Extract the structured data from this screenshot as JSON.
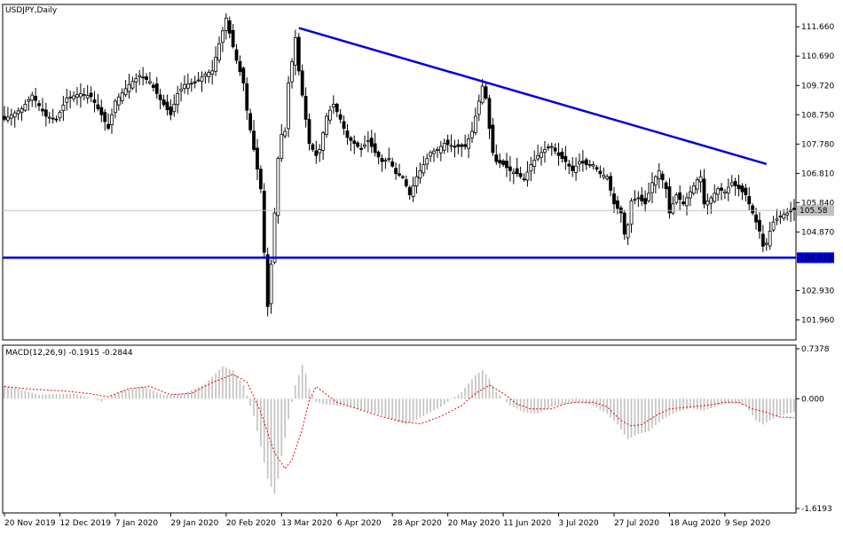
{
  "chart_data": [
    {
      "type": "candlestick",
      "symbol_label": "USDJPY,Daily",
      "ylim": [
        101.3,
        112.4
      ],
      "y_ticks": [
        "111.660",
        "110.690",
        "109.720",
        "108.750",
        "107.780",
        "106.810",
        "105.840",
        "104.870",
        "102.930",
        "101.960"
      ],
      "current_price": 105.58,
      "current_price_label": "105.58",
      "support_level": 104.019,
      "support_label": "104.019",
      "trendline": {
        "start": [
          "13 Mar 2020",
          111.62
        ],
        "end": [
          "17 Sep 2020",
          107.12
        ]
      },
      "x_ticks": [
        "20 Nov 2019",
        "12 Dec 2019",
        "7 Jan 2020",
        "29 Jan 2020",
        "20 Feb 2020",
        "13 Mar 2020",
        "6 Apr 2020",
        "28 Apr 2020",
        "20 May 2020",
        "11 Jun 2020",
        "3 Jul 2020",
        "27 Jul 2020",
        "18 Aug 2020",
        "9 Sep 2020"
      ],
      "close_anchors": [
        [
          0,
          108.6
        ],
        [
          5,
          108.95
        ],
        [
          8,
          109.4
        ],
        [
          12,
          108.7
        ],
        [
          15,
          108.6
        ],
        [
          18,
          109.3
        ],
        [
          22,
          109.45
        ],
        [
          25,
          109.35
        ],
        [
          28,
          108.75
        ],
        [
          30,
          108.3
        ],
        [
          32,
          109.2
        ],
        [
          36,
          109.75
        ],
        [
          39,
          110.05
        ],
        [
          42,
          109.85
        ],
        [
          45,
          109.25
        ],
        [
          48,
          108.75
        ],
        [
          50,
          109.45
        ],
        [
          52,
          109.75
        ],
        [
          55,
          109.8
        ],
        [
          58,
          110.1
        ],
        [
          60,
          110.2
        ],
        [
          62,
          111.1
        ],
        [
          64,
          111.95
        ],
        [
          65,
          111.45
        ],
        [
          67,
          110.55
        ],
        [
          69,
          109.8
        ],
        [
          70,
          108.9
        ],
        [
          72,
          107.6
        ],
        [
          74,
          106.3
        ],
        [
          75,
          104.2
        ],
        [
          76,
          102.4
        ],
        [
          77,
          103.8
        ],
        [
          78,
          105.5
        ],
        [
          79,
          107.3
        ],
        [
          80,
          108.1
        ],
        [
          81,
          108.2
        ],
        [
          82,
          109.8
        ],
        [
          83,
          110.5
        ],
        [
          84,
          111.3
        ],
        [
          85,
          110.2
        ],
        [
          87,
          108.6
        ],
        [
          88,
          107.8
        ],
        [
          90,
          107.4
        ],
        [
          91,
          107.6
        ],
        [
          93,
          108.7
        ],
        [
          95,
          109.1
        ],
        [
          97,
          108.6
        ],
        [
          99,
          108.0
        ],
        [
          101,
          107.8
        ],
        [
          103,
          107.6
        ],
        [
          105,
          107.9
        ],
        [
          107,
          107.5
        ],
        [
          109,
          107.2
        ],
        [
          111,
          107.3
        ],
        [
          113,
          106.8
        ],
        [
          115,
          106.7
        ],
        [
          117,
          106.1
        ],
        [
          119,
          106.7
        ],
        [
          121,
          107.1
        ],
        [
          123,
          107.5
        ],
        [
          125,
          107.6
        ],
        [
          127,
          107.8
        ],
        [
          130,
          107.7
        ],
        [
          133,
          107.7
        ],
        [
          135,
          108.2
        ],
        [
          137,
          109.2
        ],
        [
          138,
          109.7
        ],
        [
          139,
          109.3
        ],
        [
          140,
          108.3
        ],
        [
          141,
          107.5
        ],
        [
          142,
          107.2
        ],
        [
          144,
          107.1
        ],
        [
          146,
          106.9
        ],
        [
          148,
          106.8
        ],
        [
          150,
          106.6
        ],
        [
          152,
          107.1
        ],
        [
          154,
          107.4
        ],
        [
          156,
          107.6
        ],
        [
          158,
          107.7
        ],
        [
          160,
          107.4
        ],
        [
          162,
          107.2
        ],
        [
          164,
          106.9
        ],
        [
          166,
          107.2
        ],
        [
          168,
          107.1
        ],
        [
          170,
          107.1
        ],
        [
          172,
          106.8
        ],
        [
          174,
          106.7
        ],
        [
          176,
          105.8
        ],
        [
          178,
          105.5
        ],
        [
          179,
          104.8
        ],
        [
          180,
          105.1
        ],
        [
          181,
          105.9
        ],
        [
          183,
          106.0
        ],
        [
          185,
          105.8
        ],
        [
          187,
          106.5
        ],
        [
          189,
          106.9
        ],
        [
          191,
          106.3
        ],
        [
          192,
          105.5
        ],
        [
          194,
          106.1
        ],
        [
          196,
          105.8
        ],
        [
          198,
          106.2
        ],
        [
          200,
          106.6
        ],
        [
          201,
          106.7
        ],
        [
          202,
          105.8
        ],
        [
          204,
          106.0
        ],
        [
          206,
          106.3
        ],
        [
          208,
          106.2
        ],
        [
          210,
          106.5
        ],
        [
          212,
          106.3
        ],
        [
          214,
          106.1
        ],
        [
          216,
          105.5
        ],
        [
          218,
          104.9
        ],
        [
          219,
          104.4
        ],
        [
          220,
          104.5
        ],
        [
          221,
          104.9
        ],
        [
          222,
          105.2
        ],
        [
          224,
          105.4
        ],
        [
          226,
          105.5
        ],
        [
          228,
          105.58
        ]
      ]
    },
    {
      "type": "bar+line",
      "label": "MACD(12,26,9) -0.1915 -0.2844",
      "series": [
        {
          "name": "MACD",
          "kind": "histogram",
          "anchors": [
            [
              0,
              0.2
            ],
            [
              10,
              0.06
            ],
            [
              20,
              0.08
            ],
            [
              28,
              -0.04
            ],
            [
              34,
              0.12
            ],
            [
              40,
              0.18
            ],
            [
              46,
              0.05
            ],
            [
              52,
              0.08
            ],
            [
              58,
              0.22
            ],
            [
              63,
              0.48
            ],
            [
              66,
              0.42
            ],
            [
              69,
              0.2
            ],
            [
              72,
              -0.25
            ],
            [
              74,
              -0.7
            ],
            [
              76,
              -1.18
            ],
            [
              77,
              -1.3
            ],
            [
              78,
              -1.4
            ],
            [
              79,
              -1.18
            ],
            [
              80,
              -0.85
            ],
            [
              82,
              -0.3
            ],
            [
              84,
              0.2
            ],
            [
              86,
              0.5
            ],
            [
              87,
              0.38
            ],
            [
              88,
              0.15
            ],
            [
              90,
              -0.05
            ],
            [
              92,
              -0.08
            ],
            [
              96,
              -0.1
            ],
            [
              100,
              -0.12
            ],
            [
              106,
              -0.2
            ],
            [
              112,
              -0.3
            ],
            [
              116,
              -0.38
            ],
            [
              120,
              -0.28
            ],
            [
              126,
              -0.12
            ],
            [
              132,
              0.1
            ],
            [
              136,
              0.35
            ],
            [
              138,
              0.42
            ],
            [
              140,
              0.3
            ],
            [
              142,
              0.1
            ],
            [
              146,
              -0.1
            ],
            [
              150,
              -0.2
            ],
            [
              154,
              -0.22
            ],
            [
              158,
              -0.12
            ],
            [
              162,
              -0.08
            ],
            [
              166,
              -0.05
            ],
            [
              170,
              -0.1
            ],
            [
              174,
              -0.22
            ],
            [
              177,
              -0.38
            ],
            [
              180,
              -0.6
            ],
            [
              183,
              -0.52
            ],
            [
              186,
              -0.48
            ],
            [
              190,
              -0.3
            ],
            [
              194,
              -0.2
            ],
            [
              198,
              -0.14
            ],
            [
              202,
              -0.18
            ],
            [
              206,
              -0.1
            ],
            [
              210,
              -0.06
            ],
            [
              214,
              -0.1
            ],
            [
              217,
              -0.32
            ],
            [
              219,
              -0.38
            ],
            [
              221,
              -0.32
            ],
            [
              224,
              -0.25
            ],
            [
              228,
              -0.19
            ]
          ]
        },
        {
          "name": "Signal",
          "kind": "dashed-line",
          "anchors": [
            [
              0,
              0.18
            ],
            [
              8,
              0.14
            ],
            [
              16,
              0.12
            ],
            [
              24,
              0.08
            ],
            [
              30,
              0.03
            ],
            [
              36,
              0.15
            ],
            [
              42,
              0.18
            ],
            [
              48,
              0.06
            ],
            [
              54,
              0.08
            ],
            [
              60,
              0.24
            ],
            [
              66,
              0.36
            ],
            [
              70,
              0.25
            ],
            [
              74,
              -0.2
            ],
            [
              78,
              -0.8
            ],
            [
              81,
              -1.03
            ],
            [
              83,
              -0.9
            ],
            [
              86,
              -0.45
            ],
            [
              88,
              -0.02
            ],
            [
              90,
              0.18
            ],
            [
              92,
              0.1
            ],
            [
              96,
              -0.05
            ],
            [
              102,
              -0.15
            ],
            [
              108,
              -0.25
            ],
            [
              114,
              -0.33
            ],
            [
              120,
              -0.37
            ],
            [
              126,
              -0.26
            ],
            [
              132,
              -0.1
            ],
            [
              136,
              0.08
            ],
            [
              140,
              0.2
            ],
            [
              144,
              0.08
            ],
            [
              148,
              -0.08
            ],
            [
              152,
              -0.15
            ],
            [
              158,
              -0.15
            ],
            [
              162,
              -0.07
            ],
            [
              166,
              -0.05
            ],
            [
              170,
              -0.05
            ],
            [
              174,
              -0.12
            ],
            [
              178,
              -0.32
            ],
            [
              181,
              -0.4
            ],
            [
              184,
              -0.38
            ],
            [
              188,
              -0.25
            ],
            [
              192,
              -0.15
            ],
            [
              196,
              -0.13
            ],
            [
              200,
              -0.11
            ],
            [
              204,
              -0.09
            ],
            [
              208,
              -0.05
            ],
            [
              212,
              -0.05
            ],
            [
              216,
              -0.15
            ],
            [
              220,
              -0.2
            ],
            [
              224,
              -0.27
            ],
            [
              228,
              -0.28
            ]
          ]
        }
      ],
      "ylim": [
        -1.6193,
        0.7378
      ],
      "y_ticks": [
        "0.7378",
        "0.000",
        "-1.6193"
      ]
    }
  ]
}
